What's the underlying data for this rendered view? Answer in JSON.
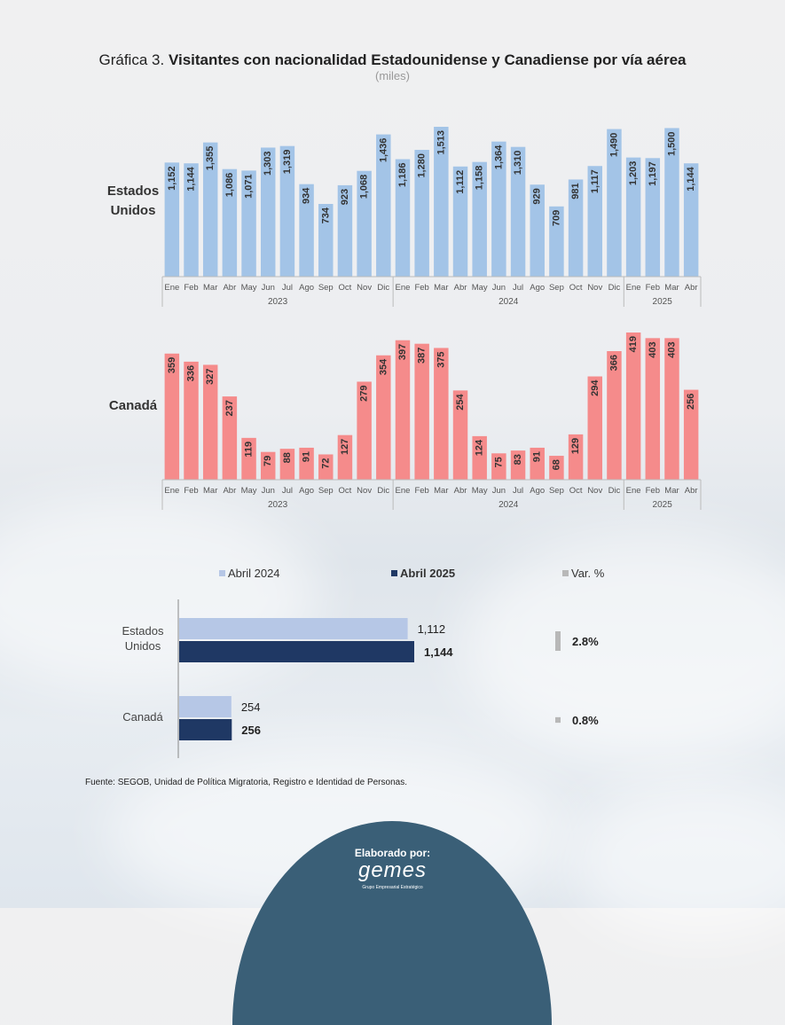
{
  "title": {
    "prefix": "Gráfica 3.",
    "main": "Visitantes con nacionalidad Estadounidense y Canadiense por vía aérea",
    "unit": "(miles)"
  },
  "source": "Fuente: SEGOB, Unidad de Política Migratoria, Registro e Identidad de Personas.",
  "footer": {
    "made_by": "Elaborado por:",
    "logo": "gemes",
    "tagline": "Grupo Empresarial Estratégico"
  },
  "colors": {
    "us_bars": "#a3c4e7",
    "ca_bars": "#f58b8b",
    "abril2024": "#b6c7e6",
    "abril2025": "#1f3864",
    "var": "#b8b8b8"
  },
  "chart_data": [
    {
      "type": "bar",
      "row_label": [
        "Estados",
        "Unidos"
      ],
      "months": [
        "Ene",
        "Feb",
        "Mar",
        "Abr",
        "May",
        "Jun",
        "Jul",
        "Ago",
        "Sep",
        "Oct",
        "Nov",
        "Dic",
        "Ene",
        "Feb",
        "Mar",
        "Abr",
        "May",
        "Jun",
        "Jul",
        "Ago",
        "Sep",
        "Oct",
        "Nov",
        "Dic",
        "Ene",
        "Feb",
        "Mar",
        "Abr"
      ],
      "years": [
        {
          "label": "2023",
          "count": 12
        },
        {
          "label": "2024",
          "count": 12
        },
        {
          "label": "2025",
          "count": 4
        }
      ],
      "values": [
        1152,
        1144,
        1355,
        1086,
        1071,
        1303,
        1319,
        934,
        734,
        923,
        1068,
        1436,
        1186,
        1280,
        1513,
        1112,
        1158,
        1364,
        1310,
        929,
        709,
        981,
        1117,
        1490,
        1203,
        1197,
        1500,
        1144
      ],
      "value_labels": [
        "1,152",
        "1,144",
        "1,355",
        "1,086",
        "1,071",
        "1,303",
        "1,319",
        "934",
        "734",
        "923",
        "1,068",
        "1,436",
        "1,186",
        "1,280",
        "1,513",
        "1,112",
        "1,158",
        "1,364",
        "1,310",
        "929",
        "709",
        "981",
        "1,117",
        "1,490",
        "1,203",
        "1,197",
        "1,500",
        "1,144"
      ],
      "ylim": [
        0,
        1513
      ]
    },
    {
      "type": "bar",
      "row_label": [
        "Canadá"
      ],
      "months": [
        "Ene",
        "Feb",
        "Mar",
        "Abr",
        "May",
        "Jun",
        "Jul",
        "Ago",
        "Sep",
        "Oct",
        "Nov",
        "Dic",
        "Ene",
        "Feb",
        "Mar",
        "Abr",
        "May",
        "Jun",
        "Jul",
        "Ago",
        "Sep",
        "Oct",
        "Nov",
        "Dic",
        "Ene",
        "Feb",
        "Mar",
        "Abr"
      ],
      "years": [
        {
          "label": "2023",
          "count": 12
        },
        {
          "label": "2024",
          "count": 12
        },
        {
          "label": "2025",
          "count": 4
        }
      ],
      "values": [
        359,
        336,
        327,
        237,
        119,
        79,
        88,
        91,
        72,
        127,
        279,
        354,
        397,
        387,
        375,
        254,
        124,
        75,
        83,
        91,
        68,
        129,
        294,
        366,
        419,
        403,
        403,
        256
      ],
      "value_labels": [
        "359",
        "336",
        "327",
        "237",
        "119",
        "79",
        "88",
        "91",
        "72",
        "127",
        "279",
        "354",
        "397",
        "387",
        "375",
        "254",
        "124",
        "75",
        "83",
        "91",
        "68",
        "129",
        "294",
        "366",
        "419",
        "403",
        "403",
        "256"
      ],
      "ylim": [
        0,
        419
      ]
    },
    {
      "type": "bar",
      "orientation": "horizontal",
      "legend": [
        "Abril 2024",
        "Abril 2025",
        "Var. %"
      ],
      "categories": [
        [
          "Estados",
          "Unidos"
        ],
        [
          "Canadá"
        ]
      ],
      "series": [
        {
          "name": "Abril 2024",
          "values": [
            1112,
            254
          ],
          "labels": [
            "1,112",
            "254"
          ]
        },
        {
          "name": "Abril 2025",
          "values": [
            1144,
            256
          ],
          "labels": [
            "1,144",
            "256"
          ]
        }
      ],
      "variation": {
        "values": [
          2.8,
          0.8
        ],
        "labels": [
          "2.8%",
          "0.8%"
        ]
      }
    }
  ]
}
